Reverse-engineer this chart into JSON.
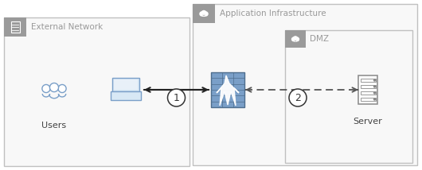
{
  "bg_color": "#ffffff",
  "box_edge_color": "#c0c0c0",
  "box_fill_color": "#f7f7f7",
  "tab_color": "#9a9a9a",
  "tab_text_color": "#ffffff",
  "label_color": "#999999",
  "icon_blue": "#7a9fc8",
  "icon_gray": "#888888",
  "firewall_fill": "#7a9fc8",
  "firewall_dark": "#4e6e8e",
  "arrow_solid_color": "#222222",
  "arrow_dash_color": "#555555",
  "circle_edge": "#333333",
  "circle_text": "#333333",
  "users_label": "Users",
  "server_label": "Server",
  "ext_network_label": "External Network",
  "app_infra_label": "Application Infrastructure",
  "dmz_label": "DMZ",
  "label1": "1",
  "label2": "2",
  "figw": 5.3,
  "figh": 2.14,
  "dpi": 100
}
